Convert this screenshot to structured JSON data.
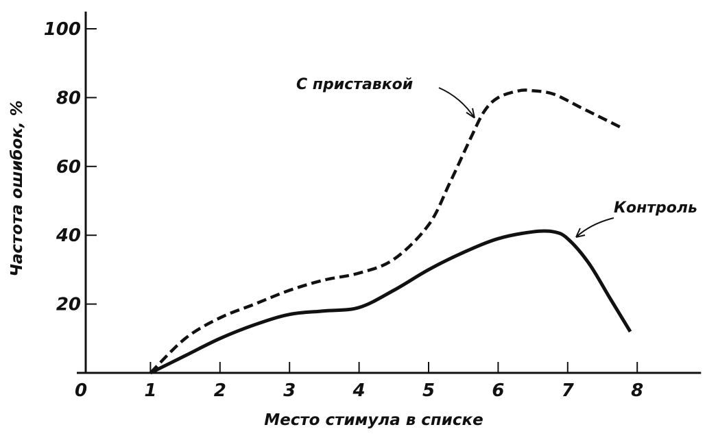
{
  "chart_data": {
    "type": "line",
    "xlabel": "Место стимула в списке",
    "ylabel": "Частота ошибок, %",
    "xlim": [
      0,
      8.8
    ],
    "ylim": [
      0,
      105
    ],
    "x_ticks": [
      "0",
      "1",
      "2",
      "3",
      "4",
      "5",
      "6",
      "7",
      "8"
    ],
    "y_ticks": [
      "20",
      "40",
      "60",
      "80",
      "100"
    ],
    "grid": false,
    "series": [
      {
        "name": "С приставкой",
        "style": "dashed",
        "color": "#111111",
        "x": [
          1,
          1.5,
          2,
          2.5,
          3,
          3.5,
          4,
          4.5,
          5,
          5.3,
          5.6,
          5.8,
          6,
          6.3,
          6.5,
          6.8,
          7.2,
          7.5,
          7.8
        ],
        "y": [
          0,
          10,
          16,
          20,
          24,
          27,
          29,
          33,
          43,
          55,
          68,
          76,
          80,
          82,
          82,
          81,
          77,
          74,
          71
        ]
      },
      {
        "name": "Контроль",
        "style": "solid",
        "color": "#111111",
        "x": [
          1,
          1.5,
          2,
          2.5,
          3,
          3.5,
          4,
          4.5,
          5,
          5.5,
          6,
          6.5,
          6.8,
          7,
          7.3,
          7.6,
          7.9
        ],
        "y": [
          0,
          5,
          10,
          14,
          17,
          18,
          19,
          24,
          30,
          35,
          39,
          41,
          41,
          39,
          32,
          22,
          12
        ]
      }
    ]
  }
}
